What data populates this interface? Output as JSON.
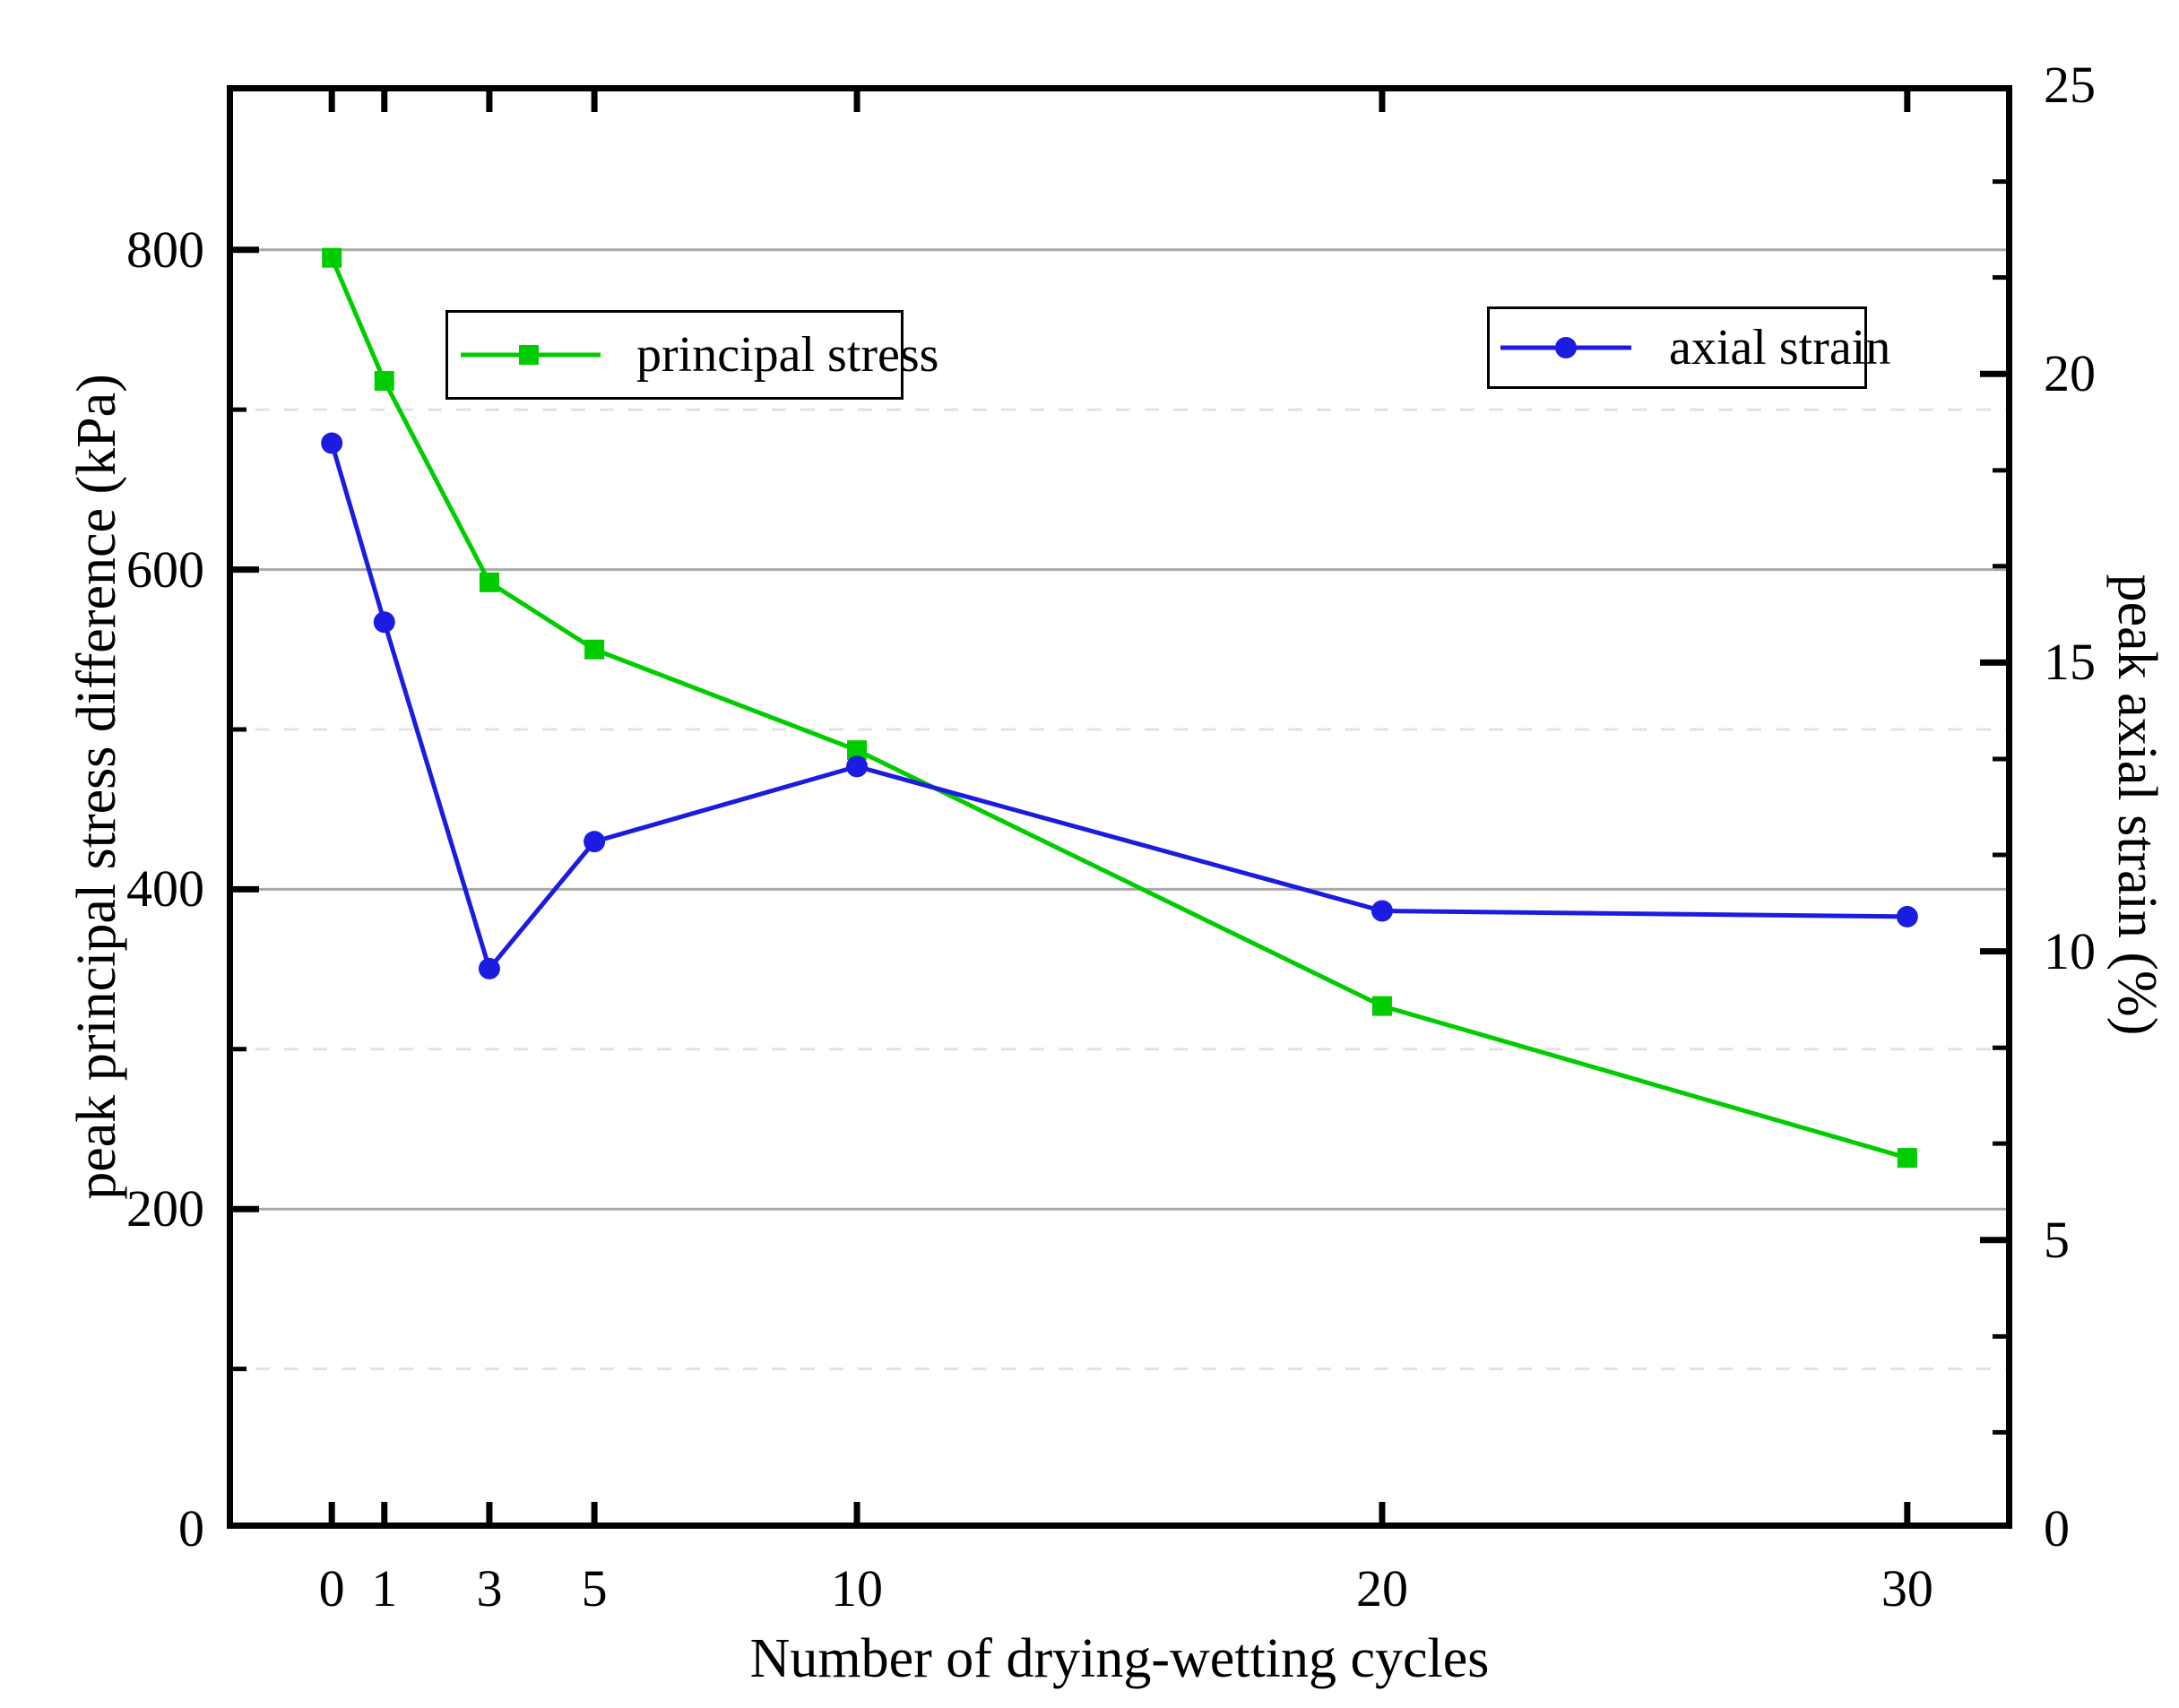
{
  "figure": {
    "x_axis_title": "Number of drying-wetting cycles",
    "y_left_axis_title": "peak principal stress difference (kPa)",
    "y_right_axis_title": "peak axial strain (%)"
  },
  "legend": {
    "principal_stress_label": "principal stress",
    "axial_strain_label": "axial strain"
  },
  "colors": {
    "principal_stress": "#00cc00",
    "axial_strain": "#1c1ce0",
    "axis": "#000000",
    "grid_major": "#a9a9a9",
    "grid_minor": "#e2e2e2",
    "background": "#ffffff"
  },
  "chart_data": {
    "type": "line",
    "title": "",
    "x": [
      0,
      1,
      3,
      5,
      10,
      20,
      30
    ],
    "x_axis": {
      "label": "Number of drying-wetting cycles",
      "range": [
        -2,
        32
      ],
      "ticks": [
        0,
        1,
        3,
        5,
        10,
        20,
        30
      ],
      "tick_labels": [
        "0",
        "1",
        "3",
        "5",
        "10",
        "20",
        "30"
      ]
    },
    "y_left_axis": {
      "label": "peak principal stress difference (kPa)",
      "range": [
        0,
        903
      ],
      "major_ticks": [
        0,
        200,
        400,
        600,
        800
      ],
      "major_tick_labels": [
        "0",
        "200",
        "400",
        "600",
        "800"
      ],
      "minor_ticks": [
        100,
        300,
        500,
        700
      ],
      "major_gridlines": [
        200,
        400,
        600,
        800
      ],
      "minor_gridlines": [
        100,
        300,
        500,
        700
      ],
      "grid": true
    },
    "y_right_axis": {
      "label": "peak axial strain (%)",
      "range": [
        0,
        25
      ],
      "major_ticks": [
        0,
        5,
        10,
        15,
        20,
        25
      ],
      "major_tick_labels": [
        "0",
        "5",
        "10",
        "15",
        "20",
        "25"
      ],
      "minor_ticks": [
        1.67,
        3.33,
        6.67,
        8.33,
        11.67,
        13.33,
        16.67,
        18.33,
        21.67,
        23.33
      ],
      "grid": false
    },
    "series": [
      {
        "name": "principal stress",
        "axis": "left",
        "marker": "square",
        "color": "#00cc00",
        "values": [
          795,
          718,
          592,
          550,
          487,
          327,
          232
        ]
      },
      {
        "name": "axial strain",
        "axis": "right",
        "marker": "circle",
        "color": "#1c1ce0",
        "values": [
          18.8,
          15.7,
          9.7,
          11.9,
          13.2,
          10.7,
          10.6
        ]
      }
    ],
    "legend_position": "top-inside, two separate framed boxes"
  }
}
